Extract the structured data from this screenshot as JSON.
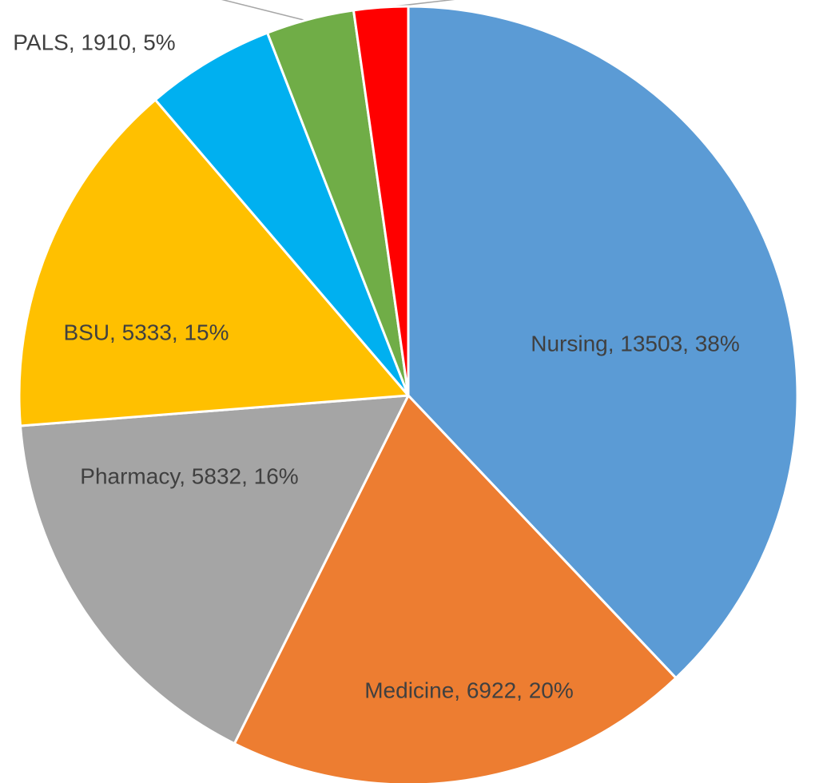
{
  "chart_data": {
    "type": "pie",
    "categories": [
      "Nursing",
      "Medicine",
      "Pharmacy",
      "BSU",
      "PALS",
      null,
      null
    ],
    "values": [
      13503,
      6922,
      5832,
      5333,
      1910,
      1300,
      800
    ],
    "value_labels": [
      "Nursing, 13503, 38%",
      "Medicine, 6922, 20%",
      "Pharmacy, 5832, 16%",
      "BSU, 5333, 15%",
      "PALS, 1910, 5%",
      null,
      null
    ],
    "colors": [
      "#5b9bd5",
      "#ed7d31",
      "#a5a5a5",
      "#ffc000",
      "#00b0f0",
      "#70ad47",
      "#ff0000"
    ]
  }
}
